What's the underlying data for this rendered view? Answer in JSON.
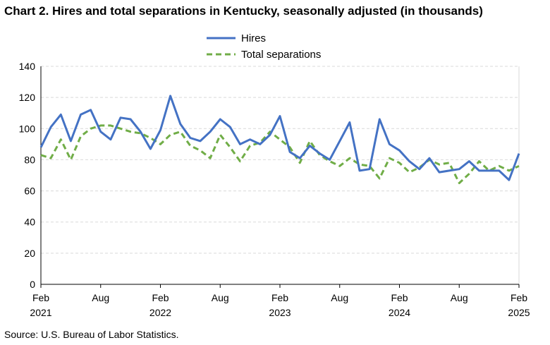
{
  "chart_data": {
    "type": "line",
    "title": "Chart 2. Hires and total separations in Kentucky, seasonally adjusted (in thousands)",
    "source": "Source: U.S. Bureau of Labor Statistics.",
    "xlabel": "",
    "ylabel": "",
    "ylim": [
      0,
      140
    ],
    "yticks": [
      0,
      20,
      40,
      60,
      80,
      100,
      120,
      140
    ],
    "grid": true,
    "legend_position": "top-center",
    "x_tick_labels": [
      {
        "index": 0,
        "month": "Feb",
        "year": "2021"
      },
      {
        "index": 6,
        "month": "Aug",
        "year": ""
      },
      {
        "index": 12,
        "month": "Feb",
        "year": "2022"
      },
      {
        "index": 18,
        "month": "Aug",
        "year": ""
      },
      {
        "index": 24,
        "month": "Feb",
        "year": "2023"
      },
      {
        "index": 30,
        "month": "Aug",
        "year": ""
      },
      {
        "index": 36,
        "month": "Feb",
        "year": "2024"
      },
      {
        "index": 42,
        "month": "Aug",
        "year": ""
      },
      {
        "index": 48,
        "month": "Feb",
        "year": "2025"
      }
    ],
    "series": [
      {
        "name": "Hires",
        "color": "#4472c4",
        "style": "solid",
        "values": [
          88,
          101,
          109,
          92,
          109,
          112,
          98,
          93,
          107,
          106,
          98,
          87,
          99,
          121,
          103,
          94,
          92,
          98,
          106,
          101,
          90,
          93,
          90,
          96,
          108,
          85,
          81,
          89,
          84,
          80,
          92,
          104,
          73,
          74,
          106,
          90,
          86,
          79,
          74,
          81,
          72,
          73,
          74,
          79,
          73,
          73,
          73,
          67,
          84
        ]
      },
      {
        "name": "Total separations",
        "color": "#70ad47",
        "style": "dashed",
        "values": [
          83,
          81,
          93,
          80,
          95,
          100,
          102,
          102,
          100,
          98,
          97,
          94,
          90,
          96,
          98,
          89,
          86,
          81,
          96,
          88,
          79,
          89,
          91,
          98,
          93,
          88,
          78,
          92,
          83,
          79,
          76,
          81,
          77,
          76,
          68,
          81,
          78,
          72,
          75,
          80,
          77,
          78,
          65,
          71,
          79,
          73,
          76,
          73,
          76
        ]
      }
    ]
  }
}
